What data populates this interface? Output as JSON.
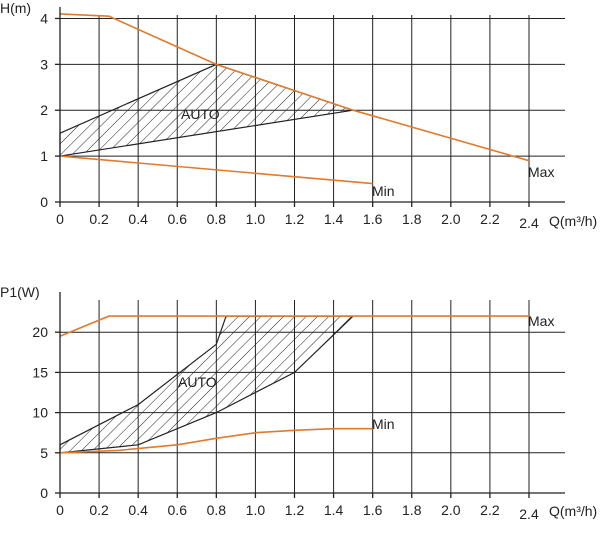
{
  "colors": {
    "curve": "#e07a2e",
    "band": "#222222",
    "grid": "#222222",
    "text": "#222222"
  },
  "chart_data": [
    {
      "type": "line",
      "title": "",
      "ylabel": "H(m)",
      "xlabel": "Q(m³/h)",
      "xlim": [
        0,
        2.4
      ],
      "ylim": [
        0,
        4
      ],
      "x_ticks": [
        0,
        0.2,
        0.4,
        0.6,
        0.8,
        1.0,
        1.2,
        1.4,
        1.6,
        1.8,
        2.0,
        2.2,
        2.4
      ],
      "x_tick_labels": [
        "0",
        "0.2",
        "0.4",
        "0.6",
        "0.8",
        "1.0",
        "1.2",
        "1.4",
        "1.6",
        "1.8",
        "2.0",
        "2.2",
        "2.4"
      ],
      "y_ticks": [
        0,
        1,
        2,
        3,
        4
      ],
      "y_tick_labels": [
        "0",
        "1",
        "2",
        "3",
        "4"
      ],
      "grid": true,
      "series": [
        {
          "name": "Max",
          "x": [
            0,
            0.25,
            0.8,
            1.5,
            2.4
          ],
          "y": [
            4.1,
            4.05,
            3.0,
            2.0,
            0.9
          ]
        },
        {
          "name": "Min",
          "x": [
            0,
            1.6
          ],
          "y": [
            1.0,
            0.4
          ]
        }
      ],
      "band": {
        "name": "AUTO",
        "upper": {
          "x": [
            0,
            0.8,
            1.5
          ],
          "y": [
            1.5,
            3.0,
            2.0
          ]
        },
        "lower": {
          "x": [
            0,
            1.5
          ],
          "y": [
            1.0,
            2.0
          ]
        }
      }
    },
    {
      "type": "line",
      "title": "",
      "ylabel": "P1(W)",
      "xlabel": "Q(m³/h)",
      "xlim": [
        0,
        2.4
      ],
      "ylim": [
        0,
        25
      ],
      "x_ticks": [
        0,
        0.2,
        0.4,
        0.6,
        0.8,
        1.0,
        1.2,
        1.4,
        1.6,
        1.8,
        2.0,
        2.2,
        2.4
      ],
      "x_tick_labels": [
        "0",
        "0.2",
        "0.4",
        "0.6",
        "0.8",
        "1.0",
        "1.2",
        "1.4",
        "1.6",
        "1.8",
        "2.0",
        "2.2",
        "2.4"
      ],
      "y_ticks": [
        0,
        5,
        10,
        15,
        20
      ],
      "y_tick_labels": [
        "0",
        "5",
        "10",
        "15",
        "20"
      ],
      "grid": true,
      "series": [
        {
          "name": "Max",
          "x": [
            0,
            0.25,
            2.4
          ],
          "y": [
            19.5,
            22,
            22
          ]
        },
        {
          "name": "Min",
          "x": [
            0,
            0.3,
            0.6,
            0.8,
            1.0,
            1.2,
            1.4,
            1.6
          ],
          "y": [
            5.0,
            5.3,
            6.0,
            6.8,
            7.5,
            7.8,
            8.0,
            8.0
          ]
        }
      ],
      "band": {
        "name": "AUTO",
        "upper": {
          "x": [
            0,
            0.4,
            0.8,
            0.85
          ],
          "y": [
            6.0,
            11.0,
            18.5,
            22.0
          ]
        },
        "lower": {
          "x": [
            0,
            0.4,
            0.8,
            1.2,
            1.5
          ],
          "y": [
            5.0,
            6.0,
            10.0,
            15.0,
            22.0
          ]
        }
      }
    }
  ]
}
